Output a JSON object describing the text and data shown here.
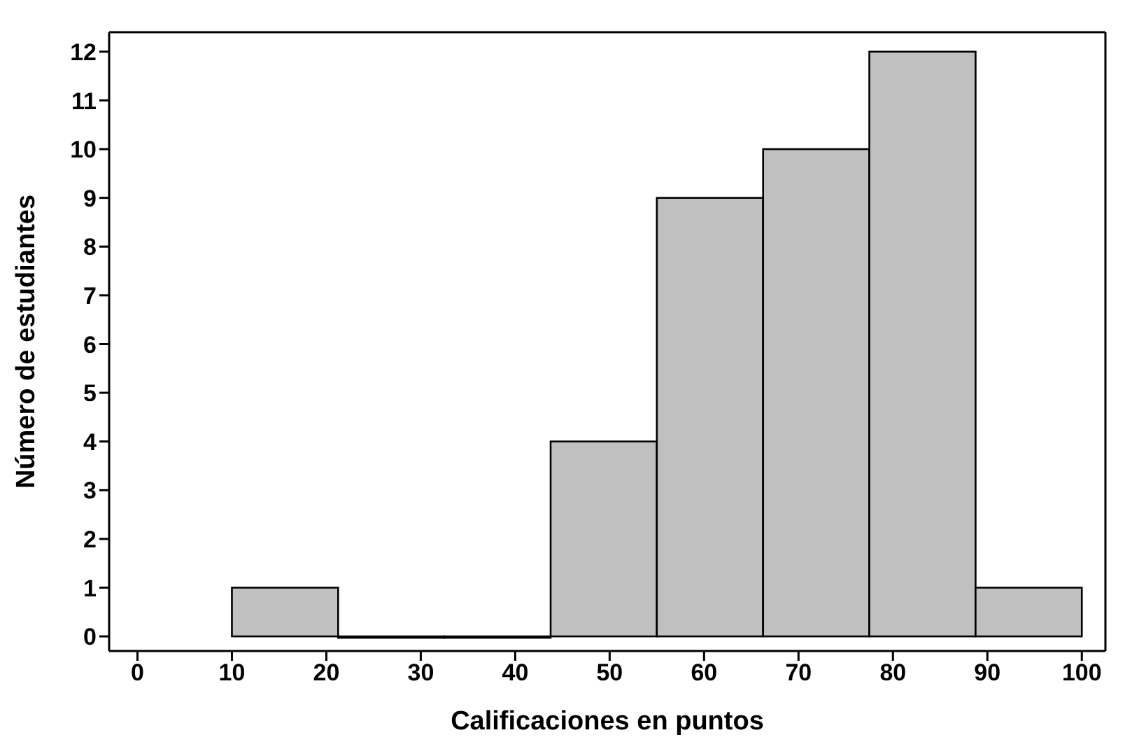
{
  "chart_data": {
    "type": "histogram",
    "xlabel": "Calificaciones en puntos",
    "ylabel": "Número de estudiantes",
    "bins": [
      10,
      21.25,
      32.5,
      43.75,
      55,
      66.25,
      77.5,
      88.75,
      100
    ],
    "values": [
      1,
      0,
      0,
      4,
      9,
      10,
      12,
      1
    ],
    "color": "#c0c0c0",
    "xlim": [
      -3,
      102.5
    ],
    "xticks": [
      0,
      10,
      20,
      30,
      40,
      50,
      60,
      70,
      80,
      90,
      100
    ],
    "ylim": [
      -0.3,
      12.4
    ],
    "yticks": [
      0,
      1,
      2,
      3,
      4,
      5,
      6,
      7,
      8,
      9,
      10,
      11,
      12
    ],
    "grid": false
  }
}
